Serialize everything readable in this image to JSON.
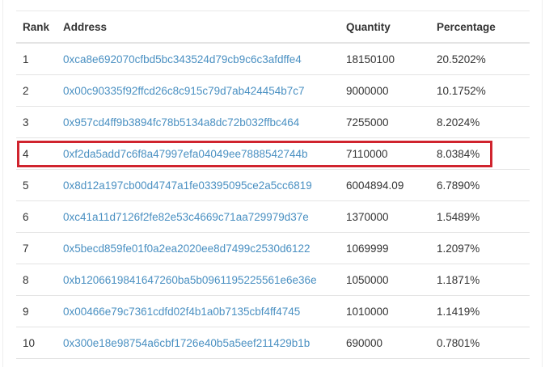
{
  "table": {
    "headers": [
      "Rank",
      "Address",
      "Quantity",
      "Percentage"
    ],
    "rows": [
      {
        "rank": "1",
        "address": "0xca8e692070cfbd5bc343524d79cb9c6c3afdffe4",
        "quantity": "18150100",
        "percentage": "20.5202%"
      },
      {
        "rank": "2",
        "address": "0x00c90335f92ffcd26c8c915c79d7ab424454b7c7",
        "quantity": "9000000",
        "percentage": "10.1752%"
      },
      {
        "rank": "3",
        "address": "0x957cd4ff9b3894fc78b5134a8dc72b032ffbc464",
        "quantity": "7255000",
        "percentage": "8.2024%"
      },
      {
        "rank": "4",
        "address": "0xf2da5add7c6f8a47997efa04049ee7888542744b",
        "quantity": "7110000",
        "percentage": "8.0384%"
      },
      {
        "rank": "5",
        "address": "0x8d12a197cb00d4747a1fe03395095ce2a5cc6819",
        "quantity": "6004894.09",
        "percentage": "6.7890%"
      },
      {
        "rank": "6",
        "address": "0xc41a11d7126f2fe82e53c4669c71aa729979d37e",
        "quantity": "1370000",
        "percentage": "1.5489%"
      },
      {
        "rank": "7",
        "address": "0x5becd859fe01f0a2ea2020ee8d7499c2530d6122",
        "quantity": "1069999",
        "percentage": "1.2097%"
      },
      {
        "rank": "8",
        "address": "0xb1206619841647260ba5b0961195225561e6e36e",
        "quantity": "1050000",
        "percentage": "1.1871%"
      },
      {
        "rank": "9",
        "address": "0x00466e79c7361cdfd02f4b1a0b7135cbf4ff4745",
        "quantity": "1010000",
        "percentage": "1.1419%"
      },
      {
        "rank": "10",
        "address": "0x300e18e98754a6cbf1726e40b5a5eef211429b1b",
        "quantity": "690000",
        "percentage": "0.7801%"
      }
    ],
    "highlighted_rank": "4"
  },
  "colors": {
    "link": "#4a90c2",
    "highlight": "#d0242e"
  }
}
